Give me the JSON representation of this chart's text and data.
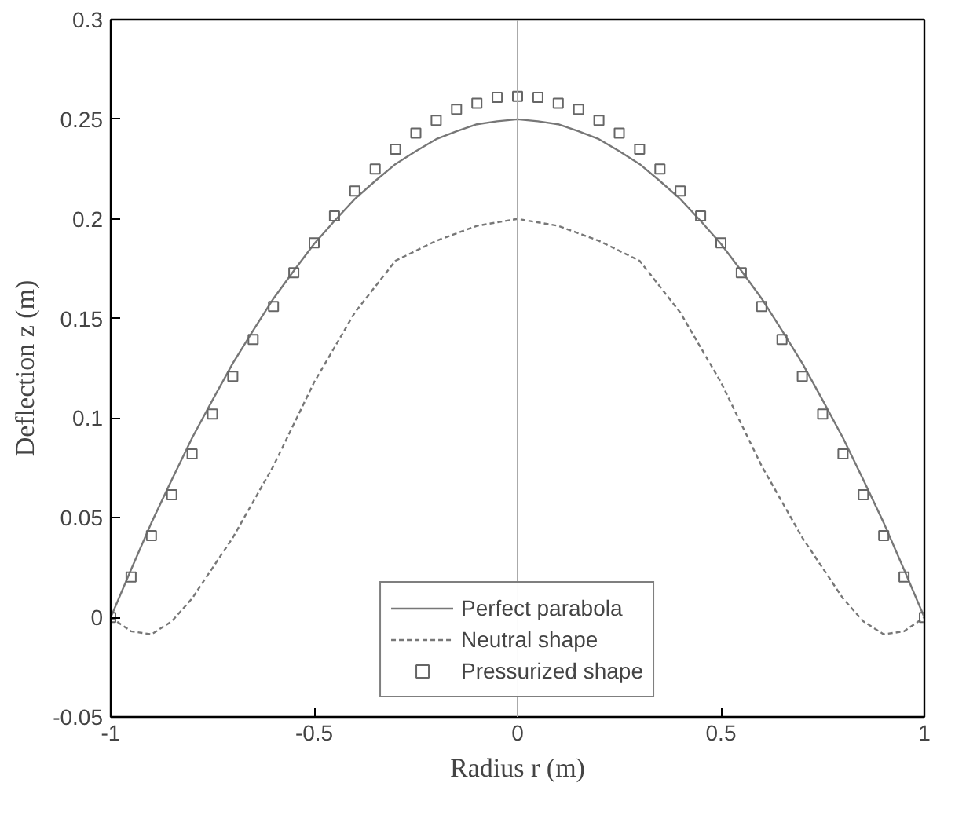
{
  "chart_data": {
    "type": "line",
    "xlabel": "Radius r (m)",
    "ylabel": "Deflection z (m)",
    "xlim": [
      -1,
      1
    ],
    "ylim": [
      -0.05,
      0.3
    ],
    "xticks": [
      -1,
      -0.5,
      0,
      0.5,
      1
    ],
    "yticks": [
      -0.05,
      0,
      0.05,
      0.1,
      0.15,
      0.2,
      0.25,
      0.3
    ],
    "grid": false,
    "legend": "bottom",
    "ref_lines": [
      {
        "axis": "x",
        "value": 0,
        "color": "#aaaaaa"
      }
    ],
    "series": [
      {
        "name": "Perfect parabola",
        "line_style": "solid",
        "color": "#777777",
        "x": [
          -1,
          -0.95,
          -0.9,
          -0.85,
          -0.8,
          -0.75,
          -0.7,
          -0.65,
          -0.6,
          -0.55,
          -0.5,
          -0.45,
          -0.4,
          -0.35,
          -0.3,
          -0.25,
          -0.2,
          -0.15,
          -0.1,
          -0.05,
          0,
          0.05,
          0.1,
          0.15,
          0.2,
          0.25,
          0.3,
          0.35,
          0.4,
          0.45,
          0.5,
          0.55,
          0.6,
          0.65,
          0.7,
          0.75,
          0.8,
          0.85,
          0.9,
          0.95,
          1
        ],
        "values": [
          0,
          0.024,
          0.0475,
          0.069,
          0.09,
          0.109,
          0.1275,
          0.144,
          0.16,
          0.174,
          0.1875,
          0.199,
          0.21,
          0.219,
          0.2275,
          0.234,
          0.24,
          0.244,
          0.2475,
          0.249,
          0.25,
          0.249,
          0.2475,
          0.244,
          0.24,
          0.234,
          0.2275,
          0.219,
          0.21,
          0.199,
          0.1875,
          0.174,
          0.16,
          0.144,
          0.1275,
          0.109,
          0.09,
          0.069,
          0.0475,
          0.024,
          0
        ]
      },
      {
        "name": "Neutral shape",
        "line_style": "dashed",
        "color": "#777777",
        "x": [
          -1,
          -0.95,
          -0.9,
          -0.85,
          -0.8,
          -0.7,
          -0.6,
          -0.5,
          -0.4,
          -0.3,
          -0.2,
          -0.1,
          0,
          0.1,
          0.2,
          0.3,
          0.4,
          0.5,
          0.6,
          0.7,
          0.8,
          0.85,
          0.9,
          0.95,
          1
        ],
        "values": [
          0,
          -0.007,
          -0.0085,
          -0.002,
          0.0095,
          0.04,
          0.076,
          0.118,
          0.153,
          0.179,
          0.189,
          0.1965,
          0.2,
          0.1965,
          0.189,
          0.179,
          0.153,
          0.118,
          0.076,
          0.04,
          0.0095,
          -0.002,
          -0.0085,
          -0.007,
          0
        ]
      },
      {
        "name": "Pressurized shape",
        "type": "scatter",
        "marker": "square",
        "color": "#666666",
        "x": [
          -1,
          -0.95,
          -0.9,
          -0.85,
          -0.8,
          -0.75,
          -0.7,
          -0.65,
          -0.6,
          -0.55,
          -0.5,
          -0.45,
          -0.4,
          -0.35,
          -0.3,
          -0.25,
          -0.2,
          -0.15,
          -0.1,
          -0.05,
          0,
          0.05,
          0.1,
          0.15,
          0.2,
          0.25,
          0.3,
          0.35,
          0.4,
          0.45,
          0.5,
          0.55,
          0.6,
          0.65,
          0.7,
          0.75,
          0.8,
          0.85,
          0.9,
          0.95,
          1
        ],
        "values": [
          0,
          0.0203,
          0.041,
          0.0615,
          0.082,
          0.102,
          0.121,
          0.1395,
          0.156,
          0.173,
          0.188,
          0.2015,
          0.214,
          0.225,
          0.235,
          0.243,
          0.2495,
          0.255,
          0.258,
          0.261,
          0.2615,
          0.261,
          0.258,
          0.255,
          0.2495,
          0.243,
          0.235,
          0.225,
          0.214,
          0.2015,
          0.188,
          0.173,
          0.156,
          0.1395,
          0.121,
          0.102,
          0.082,
          0.0615,
          0.041,
          0.0203,
          0
        ]
      }
    ]
  }
}
